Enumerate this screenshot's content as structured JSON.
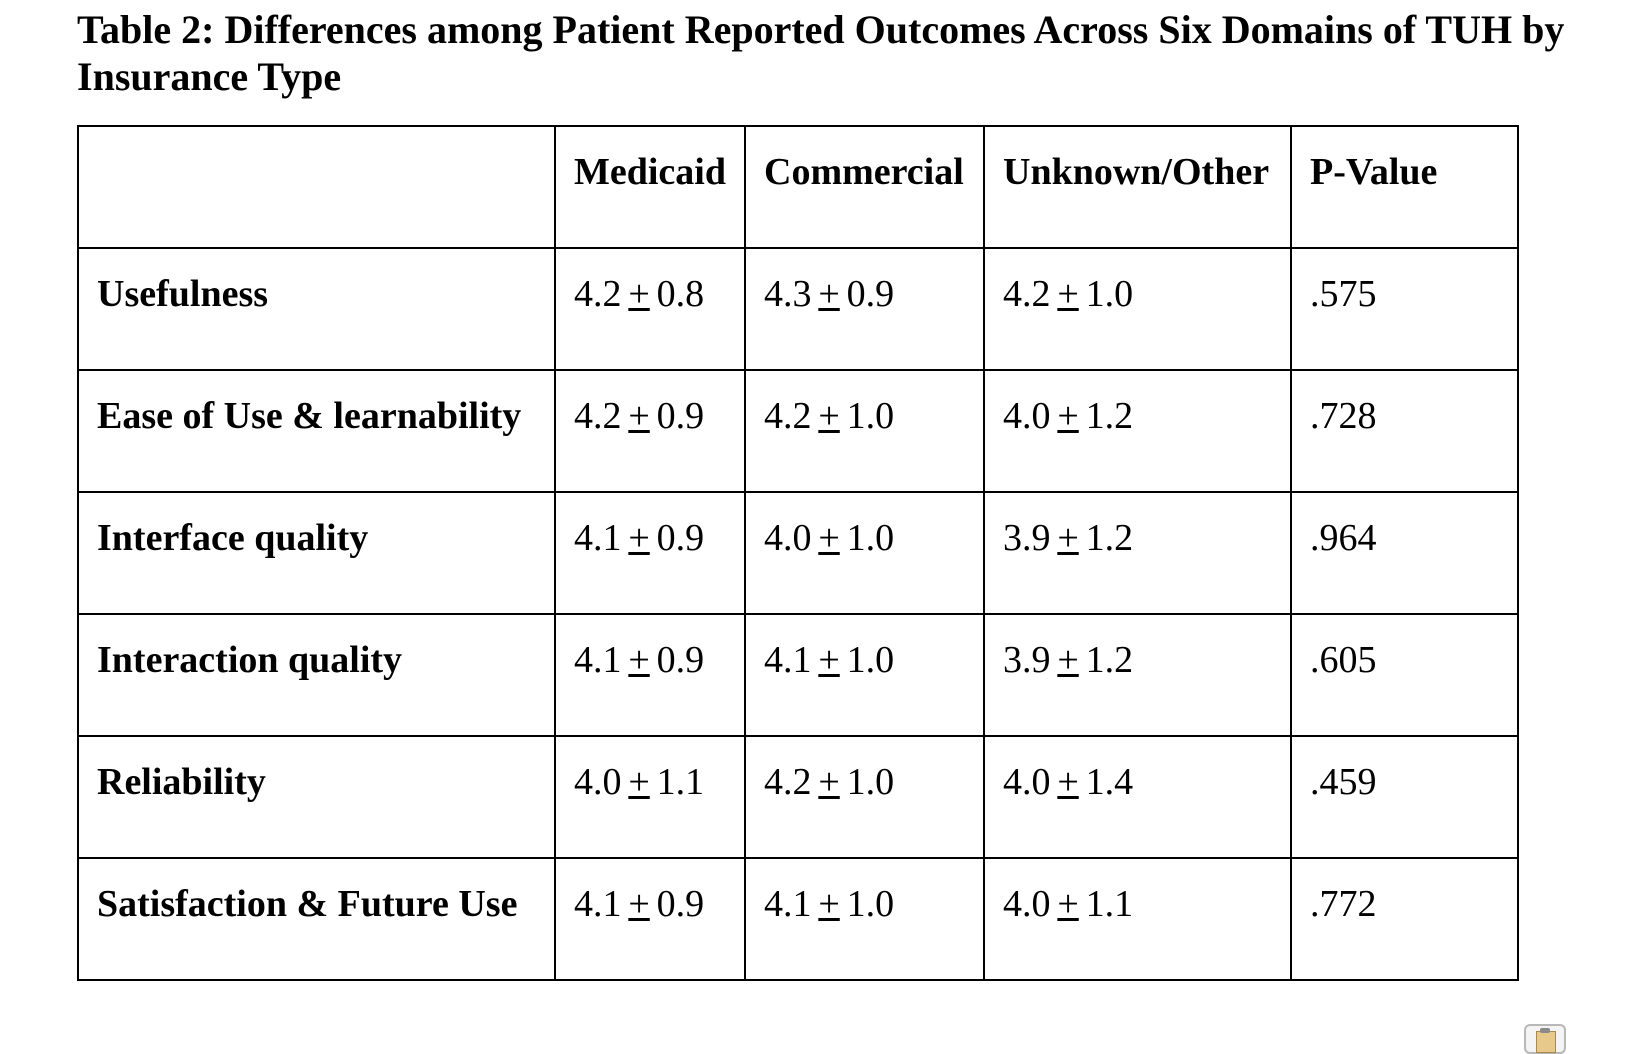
{
  "title": "Table 2: Differences among Patient Reported Outcomes Across Six Domains of TUH by Insurance Type",
  "table": {
    "headers": [
      "",
      "Medicaid",
      "Commercial",
      "Unknown/Other",
      "P-Value"
    ],
    "rows": [
      {
        "label": "Usefulness",
        "medicaid": {
          "mean": "4.2",
          "pm": "+",
          "sd": "0.8"
        },
        "commercial": {
          "mean": "4.3",
          "pm": "+",
          "sd": "0.9"
        },
        "unknown_other": {
          "mean": "4.2",
          "pm": "+",
          "sd": "1.0"
        },
        "p_value": ".575"
      },
      {
        "label": "Ease of Use & learnability",
        "medicaid": {
          "mean": "4.2",
          "pm": "+",
          "sd": "0.9"
        },
        "commercial": {
          "mean": "4.2",
          "pm": "+",
          "sd": "1.0"
        },
        "unknown_other": {
          "mean": "4.0",
          "pm": "+",
          "sd": "1.2"
        },
        "p_value": ".728"
      },
      {
        "label": "Interface quality",
        "medicaid": {
          "mean": "4.1",
          "pm": "+",
          "sd": "0.9"
        },
        "commercial": {
          "mean": "4.0",
          "pm": "+",
          "sd": "1.0"
        },
        "unknown_other": {
          "mean": "3.9",
          "pm": "+",
          "sd": "1.2"
        },
        "p_value": ".964"
      },
      {
        "label": "Interaction quality",
        "medicaid": {
          "mean": "4.1",
          "pm": "+",
          "sd": "0.9"
        },
        "commercial": {
          "mean": "4.1",
          "pm": "+",
          "sd": "1.0"
        },
        "unknown_other": {
          "mean": "3.9",
          "pm": "+",
          "sd": "1.2"
        },
        "p_value": ".605"
      },
      {
        "label": "Reliability",
        "medicaid": {
          "mean": "4.0",
          "pm": "+",
          "sd": "1.1"
        },
        "commercial": {
          "mean": "4.2",
          "pm": "+",
          "sd": "1.0"
        },
        "unknown_other": {
          "mean": "4.0",
          "pm": "+",
          "sd": "1.4"
        },
        "p_value": ".459"
      },
      {
        "label": "Satisfaction & Future Use",
        "medicaid": {
          "mean": "4.1",
          "pm": "+",
          "sd": "0.9"
        },
        "commercial": {
          "mean": "4.1",
          "pm": "+",
          "sd": "1.0"
        },
        "unknown_other": {
          "mean": "4.0",
          "pm": "+",
          "sd": "1.1"
        },
        "p_value": ".772"
      }
    ]
  },
  "paste_options_icon": "clipboard-icon"
}
